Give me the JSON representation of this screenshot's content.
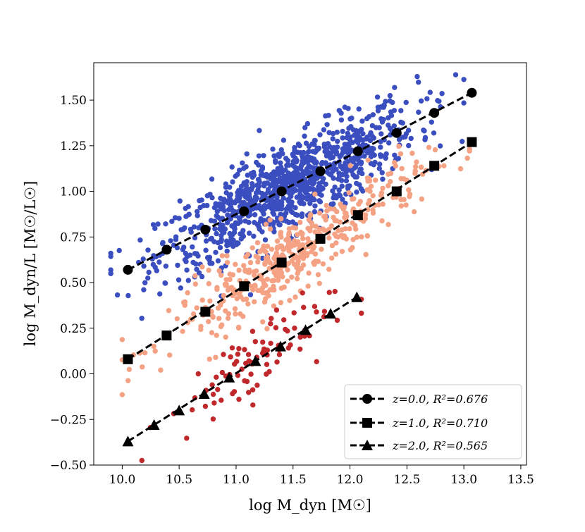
{
  "chart_data": {
    "type": "scatter",
    "title": "",
    "xlabel": "log M_dyn [M☉]",
    "ylabel": "log M_dyn/L [M☉/L☉]",
    "xlim": [
      9.75,
      13.55
    ],
    "ylim": [
      -0.5,
      1.705
    ],
    "xticks": [
      "10.0",
      "10.5",
      "11.0",
      "11.5",
      "12.0",
      "12.5",
      "13.0",
      "13.5"
    ],
    "yticks": [
      "−0.50",
      "−0.25",
      "0.00",
      "0.25",
      "0.50",
      "0.75",
      "1.00",
      "1.25",
      "1.50"
    ],
    "grid": false,
    "legend_position": "lower-right",
    "series": [
      {
        "name": "z=0.0, R²=0.676",
        "z": 0.0,
        "r2": 0.676,
        "marker": "circle",
        "scatter_color": "#3a4ec0",
        "scatter_count": 1000,
        "scatter_x_range": [
          9.9,
          13.0
        ],
        "scatter_spread": 0.12,
        "fit_x": [
          10.05,
          10.39,
          10.73,
          11.07,
          11.4,
          11.74,
          12.07,
          12.41,
          12.74,
          13.07
        ],
        "fit_y": [
          0.57,
          0.68,
          0.79,
          0.89,
          1.0,
          1.11,
          1.22,
          1.32,
          1.43,
          1.54
        ]
      },
      {
        "name": "z=1.0, R²=0.710",
        "z": 1.0,
        "r2": 0.71,
        "marker": "square",
        "scatter_color": "#f4a283",
        "scatter_count": 450,
        "scatter_x_range": [
          10.0,
          13.05
        ],
        "scatter_spread": 0.1,
        "fit_x": [
          10.05,
          10.39,
          10.73,
          11.07,
          11.4,
          11.74,
          12.07,
          12.41,
          12.74,
          13.07
        ],
        "fit_y": [
          0.08,
          0.21,
          0.34,
          0.48,
          0.61,
          0.74,
          0.87,
          1.0,
          1.14,
          1.27
        ]
      },
      {
        "name": "z=2.0, R²=0.565",
        "z": 2.0,
        "r2": 0.565,
        "marker": "triangle",
        "scatter_color": "#c0282b",
        "scatter_count": 90,
        "scatter_x_range": [
          10.1,
          12.1
        ],
        "scatter_spread": 0.1,
        "fit_x": [
          10.05,
          10.28,
          10.5,
          10.72,
          10.94,
          11.17,
          11.39,
          11.61,
          11.83,
          12.06
        ],
        "fit_y": [
          -0.37,
          -0.28,
          -0.2,
          -0.11,
          -0.02,
          0.07,
          0.15,
          0.24,
          0.33,
          0.42
        ]
      }
    ]
  }
}
